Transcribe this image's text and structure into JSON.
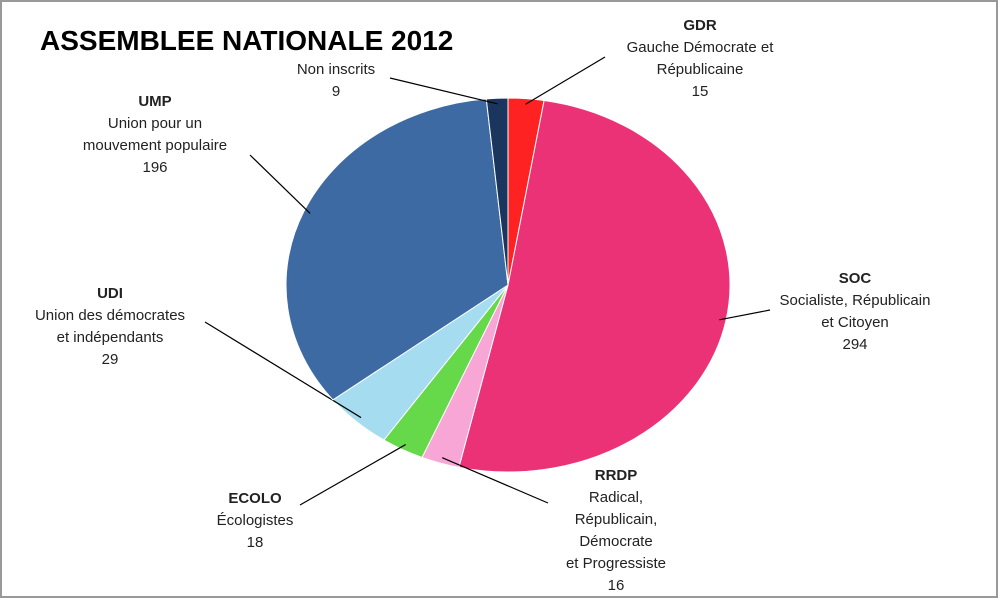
{
  "chart_data": {
    "type": "pie",
    "title": "ASSEMBLEE  NATIONALE 2012",
    "categories": [
      "GDR",
      "SOC",
      "RRDP",
      "ECOLO",
      "UDI",
      "UMP",
      null
    ],
    "descriptions": [
      [
        "Gauche Démocrate et",
        "Républicaine"
      ],
      [
        "Socialiste, Républicain",
        "et  Citoyen"
      ],
      [
        "Radical,",
        "Républicain,",
        "Démocrate",
        "et Progressiste"
      ],
      [
        "Écologistes"
      ],
      [
        "Union des démocrates",
        "et indépendants"
      ],
      [
        "Union pour un",
        "mouvement populaire"
      ],
      [
        "Non inscrits"
      ]
    ],
    "values": [
      15,
      294,
      16,
      18,
      29,
      196,
      9
    ],
    "colors": [
      "#ff2222",
      "#ec3276",
      "#f8a6d6",
      "#66d94a",
      "#a6dcef",
      "#3e6aa4",
      "#1b365e"
    ]
  }
}
